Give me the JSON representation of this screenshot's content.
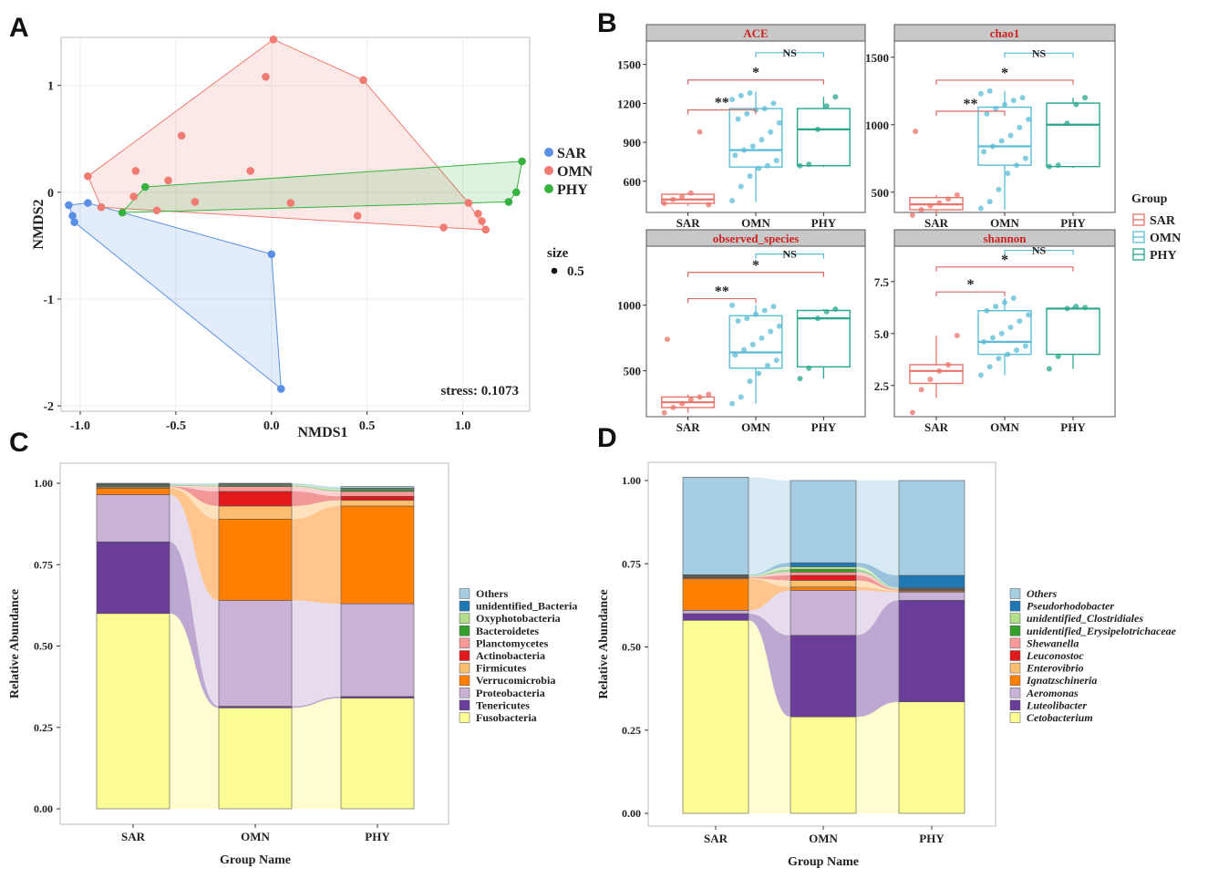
{
  "panel_labels": [
    "A",
    "B",
    "C",
    "D"
  ],
  "colors": {
    "SAR": "#e8746b",
    "OMN": "#5bbcd6",
    "PHY": "#2aa58e",
    "nmds_SAR": "#5b8fe6",
    "nmds_OMN": "#f07b72",
    "nmds_PHY": "#36b33f",
    "sig": "#d86a62",
    "ns": "#5bbcd6",
    "facet_bg": "#c8c8c8",
    "facet_text": "#cc2222"
  },
  "chart_data": [
    {
      "id": "A",
      "type": "scatter",
      "title": "",
      "xlabel": "NMDS1",
      "ylabel": "NMDS2",
      "xlim": [
        -1.1,
        1.35
      ],
      "ylim": [
        -2.05,
        1.45
      ],
      "xticks": [
        -1.0,
        -0.5,
        0.0,
        0.5,
        1.0
      ],
      "xtick_labels": [
        "-1.0",
        "-0.5",
        "0.0",
        "0.5",
        "1.0"
      ],
      "yticks": [
        -2,
        -1,
        0,
        1
      ],
      "ytick_labels": [
        "-2",
        "-1",
        "0",
        "1"
      ],
      "annotation": "stress: 0.1073",
      "legend": {
        "items": [
          "SAR",
          "OMN",
          "PHY"
        ],
        "size_title": "size",
        "size_label": "0.5"
      },
      "series": [
        {
          "name": "SAR",
          "points": [
            [
              -1.06,
              -0.12
            ],
            [
              -1.04,
              -0.22
            ],
            [
              -1.03,
              -0.28
            ],
            [
              -0.96,
              -0.1
            ],
            [
              -0.89,
              -0.14
            ],
            [
              0.0,
              -0.58
            ],
            [
              0.05,
              -1.84
            ]
          ],
          "hull": [
            [
              -1.06,
              -0.12
            ],
            [
              -0.96,
              -0.1
            ],
            [
              0.0,
              -0.58
            ],
            [
              0.05,
              -1.84
            ],
            [
              -1.03,
              -0.28
            ],
            [
              -1.04,
              -0.22
            ]
          ]
        },
        {
          "name": "OMN",
          "points": [
            [
              -0.96,
              0.15
            ],
            [
              0.01,
              1.43
            ],
            [
              -0.03,
              1.08
            ],
            [
              0.48,
              1.05
            ],
            [
              -0.47,
              0.53
            ],
            [
              -0.71,
              0.2
            ],
            [
              -0.54,
              0.11
            ],
            [
              -0.11,
              0.2
            ],
            [
              -0.72,
              -0.04
            ],
            [
              -0.89,
              -0.14
            ],
            [
              -0.6,
              -0.17
            ],
            [
              0.1,
              -0.1
            ],
            [
              -0.4,
              -0.09
            ],
            [
              0.45,
              -0.22
            ],
            [
              0.9,
              -0.33
            ],
            [
              1.03,
              -0.1
            ],
            [
              1.08,
              -0.2
            ],
            [
              1.1,
              -0.27
            ],
            [
              1.12,
              -0.35
            ]
          ],
          "hull": [
            [
              0.01,
              1.43
            ],
            [
              0.48,
              1.05
            ],
            [
              1.03,
              -0.1
            ],
            [
              1.12,
              -0.35
            ],
            [
              0.9,
              -0.33
            ],
            [
              -0.89,
              -0.14
            ],
            [
              -0.96,
              0.15
            ]
          ]
        },
        {
          "name": "PHY",
          "points": [
            [
              -0.66,
              0.05
            ],
            [
              -0.78,
              -0.19
            ],
            [
              1.31,
              0.29
            ],
            [
              1.28,
              0.0
            ],
            [
              1.24,
              -0.09
            ]
          ],
          "hull": [
            [
              -0.66,
              0.05
            ],
            [
              1.31,
              0.29
            ],
            [
              1.28,
              0.0
            ],
            [
              1.24,
              -0.09
            ],
            [
              -0.78,
              -0.19
            ]
          ]
        }
      ]
    },
    {
      "id": "B",
      "type": "box",
      "groups": [
        "SAR",
        "OMN",
        "PHY"
      ],
      "legend_title": "Group",
      "facets": [
        {
          "title": "ACE",
          "ylim": [
            360,
            1680
          ],
          "yticks": [
            600,
            900,
            1200,
            1500
          ],
          "ytick_labels": [
            "600",
            "900",
            "1200",
            "1500"
          ],
          "boxes": [
            {
              "q1": 430,
              "med": 460,
              "q3": 500,
              "lo": 410,
              "hi": 510
            },
            {
              "q1": 710,
              "med": 840,
              "q3": 1160,
              "lo": 440,
              "hi": 1290
            },
            {
              "q1": 720,
              "med": 1000,
              "q3": 1160,
              "lo": 710,
              "hi": 1250
            }
          ],
          "points": [
            [
              430,
              460,
              480,
              510,
              980,
              420
            ],
            [
              450,
              560,
              640,
              700,
              720,
              760,
              800,
              840,
              870,
              920,
              980,
              1050,
              1080,
              1120,
              1150,
              1160,
              1200,
              1230,
              1260,
              1280
            ],
            [
              720,
              730,
              1000,
              1180,
              1250
            ]
          ],
          "brackets": [
            {
              "label": "**",
              "y": 1150,
              "from": 0,
              "to": 1
            },
            {
              "label": "*",
              "y": 1380,
              "from": 0,
              "to": 2
            },
            {
              "label": "NS",
              "y": 1590,
              "from": 1,
              "to": 2
            }
          ]
        },
        {
          "title": "chao1",
          "ylim": [
            350,
            1620
          ],
          "yticks": [
            500,
            1000,
            1500
          ],
          "ytick_labels": [
            "500",
            "1000",
            "1500"
          ],
          "boxes": [
            {
              "q1": 370,
              "med": 410,
              "q3": 460,
              "lo": 340,
              "hi": 480
            },
            {
              "q1": 700,
              "med": 840,
              "q3": 1130,
              "lo": 370,
              "hi": 1250
            },
            {
              "q1": 690,
              "med": 1000,
              "q3": 1160,
              "lo": 680,
              "hi": 1200
            }
          ],
          "points": [
            [
              330,
              370,
              400,
              420,
              450,
              480,
              950
            ],
            [
              380,
              430,
              520,
              640,
              700,
              750,
              800,
              840,
              880,
              920,
              980,
              1040,
              1080,
              1120,
              1150,
              1180,
              1200,
              1230,
              1250
            ],
            [
              690,
              700,
              1010,
              1150,
              1200
            ]
          ],
          "brackets": [
            {
              "label": "**",
              "y": 1100,
              "from": 0,
              "to": 1
            },
            {
              "label": "*",
              "y": 1330,
              "from": 0,
              "to": 2
            },
            {
              "label": "NS",
              "y": 1530,
              "from": 1,
              "to": 2
            }
          ]
        },
        {
          "title": "observed_species",
          "ylim": [
            150,
            1450
          ],
          "yticks": [
            500,
            1000
          ],
          "ytick_labels": [
            "500",
            "1000"
          ],
          "boxes": [
            {
              "q1": 220,
              "med": 260,
              "q3": 300,
              "lo": 180,
              "hi": 320
            },
            {
              "q1": 520,
              "med": 640,
              "q3": 920,
              "lo": 250,
              "hi": 1000
            },
            {
              "q1": 530,
              "med": 900,
              "q3": 960,
              "lo": 440,
              "hi": 970
            }
          ],
          "points": [
            [
              180,
              220,
              250,
              280,
              300,
              320,
              740
            ],
            [
              250,
              300,
              420,
              480,
              540,
              580,
              620,
              660,
              700,
              750,
              800,
              840,
              880,
              900,
              930,
              960,
              990,
              1000
            ],
            [
              440,
              520,
              900,
              950,
              970
            ]
          ],
          "brackets": [
            {
              "label": "**",
              "y": 1050,
              "from": 0,
              "to": 1
            },
            {
              "label": "*",
              "y": 1250,
              "from": 0,
              "to": 2
            },
            {
              "label": "NS",
              "y": 1390,
              "from": 1,
              "to": 2
            }
          ]
        },
        {
          "title": "shannon",
          "ylim": [
            1.0,
            9.2
          ],
          "yticks": [
            2.5,
            5.0,
            7.5
          ],
          "ytick_labels": [
            "2.5",
            "5.0",
            "7.5"
          ],
          "boxes": [
            {
              "q1": 2.6,
              "med": 3.2,
              "q3": 3.5,
              "lo": 1.9,
              "hi": 4.9
            },
            {
              "q1": 4.0,
              "med": 4.6,
              "q3": 6.1,
              "lo": 3.0,
              "hi": 6.7
            },
            {
              "q1": 4.0,
              "med": 6.2,
              "q3": 6.2,
              "lo": 3.3,
              "hi": 6.3
            }
          ],
          "points": [
            [
              1.2,
              2.3,
              2.8,
              3.2,
              3.5,
              4.9
            ],
            [
              3.0,
              3.4,
              3.8,
              4.0,
              4.2,
              4.4,
              4.6,
              4.8,
              5.0,
              5.3,
              5.6,
              5.9,
              6.1,
              6.3,
              6.5,
              6.7
            ],
            [
              3.3,
              3.9,
              6.2,
              6.3,
              6.25
            ]
          ],
          "brackets": [
            {
              "label": "*",
              "y": 7.0,
              "from": 0,
              "to": 1
            },
            {
              "label": "*",
              "y": 8.2,
              "from": 0,
              "to": 2
            },
            {
              "label": "NS",
              "y": 9.0,
              "from": 1,
              "to": 2
            }
          ]
        }
      ]
    },
    {
      "id": "C",
      "type": "stacked-bar",
      "title": "",
      "xlabel": "Group Name",
      "ylabel": "Relative Abundance",
      "categories": [
        "SAR",
        "OMN",
        "PHY"
      ],
      "ylim": [
        0,
        1.0
      ],
      "yticks": [
        0,
        0.25,
        0.5,
        0.75,
        1.0
      ],
      "ytick_labels": [
        "0.00",
        "0.25",
        "0.50",
        "0.75",
        "1.00"
      ],
      "legend_italic": false,
      "series": [
        {
          "name": "Fusobacteria",
          "color": "#fdfd96",
          "values": [
            0.6,
            0.31,
            0.34
          ]
        },
        {
          "name": "Tenericutes",
          "color": "#6a3d9a",
          "values": [
            0.22,
            0.005,
            0.005
          ]
        },
        {
          "name": "Proteobacteria",
          "color": "#cab2d6",
          "values": [
            0.145,
            0.325,
            0.285
          ]
        },
        {
          "name": "Verrucomicrobia",
          "color": "#ff7f00",
          "values": [
            0.02,
            0.25,
            0.3
          ]
        },
        {
          "name": "Firmicutes",
          "color": "#fdbf6f",
          "values": [
            0.003,
            0.04,
            0.018
          ]
        },
        {
          "name": "Actinobacteria",
          "color": "#e31a1c",
          "values": [
            0.002,
            0.045,
            0.012
          ]
        },
        {
          "name": "Planctomycetes",
          "color": "#fb9a99",
          "values": [
            0.002,
            0.015,
            0.015
          ]
        },
        {
          "name": "Bacteroidetes",
          "color": "#33a02c",
          "values": [
            0.003,
            0.003,
            0.005
          ]
        },
        {
          "name": "Oxyphotobacteria",
          "color": "#b2df8a",
          "values": [
            0.001,
            0.003,
            0.003
          ]
        },
        {
          "name": "unidentified_Bacteria",
          "color": "#1f78b4",
          "values": [
            0.002,
            0.002,
            0.002
          ]
        },
        {
          "name": "Others",
          "color": "#a6cee3",
          "values": [
            0.002,
            0.002,
            0.005
          ]
        }
      ]
    },
    {
      "id": "D",
      "type": "stacked-bar",
      "title": "",
      "xlabel": "Group Name",
      "ylabel": "Relative Abundance",
      "categories": [
        "SAR",
        "OMN",
        "PHY"
      ],
      "ylim": [
        0,
        1.0
      ],
      "yticks": [
        0,
        0.25,
        0.5,
        0.75,
        1.0
      ],
      "ytick_labels": [
        "0.00",
        "0.25",
        "0.50",
        "0.75",
        "1.00"
      ],
      "legend_italic": true,
      "series": [
        {
          "name": "Cetobacterium",
          "color": "#fdfd96",
          "values": [
            0.58,
            0.29,
            0.335
          ]
        },
        {
          "name": "Luteolibacter",
          "color": "#6a3d9a",
          "values": [
            0.02,
            0.245,
            0.305
          ]
        },
        {
          "name": "Aeromonas",
          "color": "#cab2d6",
          "values": [
            0.01,
            0.135,
            0.025
          ]
        },
        {
          "name": "Ignatzschineria",
          "color": "#ff7f00",
          "values": [
            0.095,
            0.01,
            0.003
          ]
        },
        {
          "name": "Enterovibrio",
          "color": "#fdbf6f",
          "values": [
            0.002,
            0.02,
            0.002
          ]
        },
        {
          "name": "Leuconostoc",
          "color": "#e31a1c",
          "values": [
            0.002,
            0.015,
            0.002
          ]
        },
        {
          "name": "Shewanella",
          "color": "#fb9a99",
          "values": [
            0.002,
            0.01,
            0.002
          ]
        },
        {
          "name": "unidentified_Erysipelotrichaceae",
          "color": "#33a02c",
          "values": [
            0.002,
            0.008,
            0.002
          ]
        },
        {
          "name": "unidentified_Clostridiales",
          "color": "#b2df8a",
          "values": [
            0.002,
            0.008,
            0.002
          ]
        },
        {
          "name": "Pseudorhodobacter",
          "color": "#1f78b4",
          "values": [
            0.002,
            0.012,
            0.037
          ]
        },
        {
          "name": "Others",
          "color": "#a6cee3",
          "values": [
            0.293,
            0.247,
            0.285
          ]
        }
      ]
    }
  ]
}
